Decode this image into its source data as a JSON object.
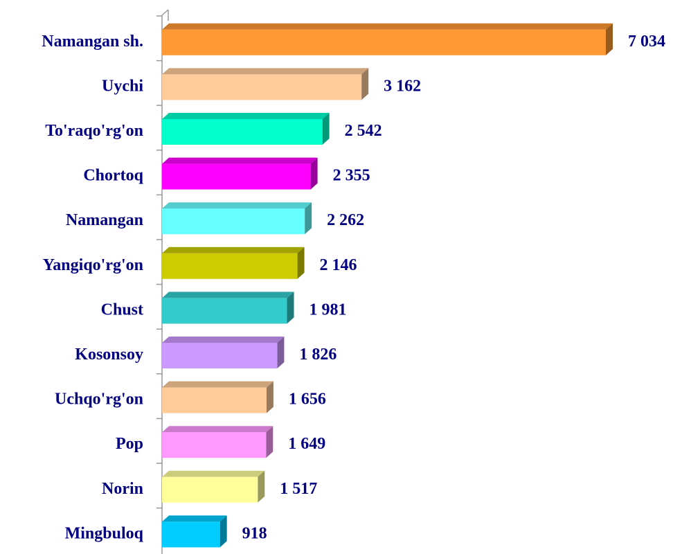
{
  "chart_data": {
    "type": "bar",
    "orientation": "horizontal",
    "categories": [
      "Namangan sh.",
      "Uychi",
      "To'raqo'rg'on",
      "Chortoq",
      "Namangan",
      "Yangiqo'rg'on",
      "Chust",
      "Kosonsoy",
      "Uchqo'rg'on",
      "Pop",
      "Norin",
      "Mingbuloq"
    ],
    "values": [
      7034,
      3162,
      2542,
      2355,
      2262,
      2146,
      1981,
      1826,
      1656,
      1649,
      1517,
      918
    ],
    "value_labels": [
      "7 034",
      "3 162",
      "2 542",
      "2 355",
      "2 262",
      "2 146",
      "1 981",
      "1 826",
      "1 656",
      "1 649",
      "1 517",
      "918"
    ],
    "colors": [
      "#ff9933",
      "#ffcc99",
      "#00ffcc",
      "#ff00ff",
      "#66ffff",
      "#cccc00",
      "#33cccc",
      "#cc99ff",
      "#ffcc99",
      "#ff99ff",
      "#ffff99",
      "#00ccff"
    ]
  }
}
